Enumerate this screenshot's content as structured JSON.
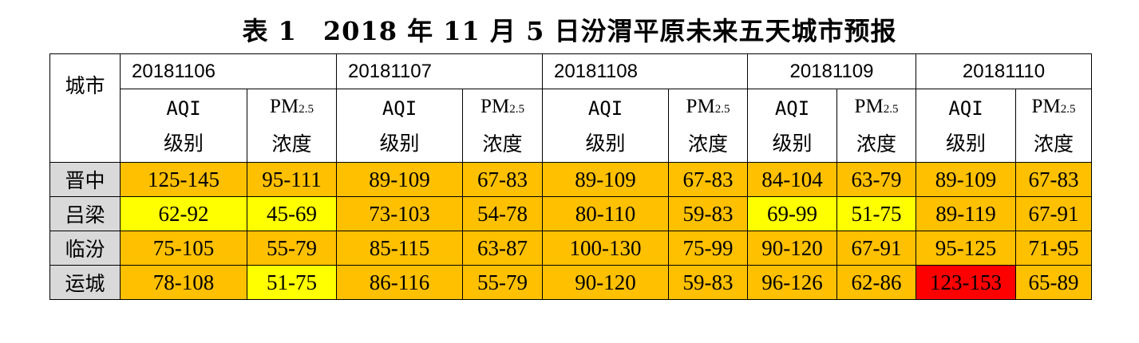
{
  "title": "表 1　2018 年 11 月 5 日汾渭平原未来五天城市预报",
  "city_header": "城市",
  "aqi_label_1": "AQI",
  "aqi_label_2": "级别",
  "pm_label_1": "PM",
  "pm_label_sub": "2.5",
  "pm_label_2": "浓度",
  "dates": [
    "20181106",
    "20181107",
    "20181108",
    "20181109",
    "20181110"
  ],
  "colors": {
    "orange": "#ffc000",
    "yellow": "#ffff00",
    "red": "#ff0000",
    "city_bg": "#d9d9d9"
  },
  "rows": [
    {
      "city": "晋中",
      "cells": [
        {
          "v": "125-145",
          "c": "orange"
        },
        {
          "v": "95-111",
          "c": "orange"
        },
        {
          "v": "89-109",
          "c": "orange"
        },
        {
          "v": "67-83",
          "c": "orange"
        },
        {
          "v": "89-109",
          "c": "orange"
        },
        {
          "v": "67-83",
          "c": "orange"
        },
        {
          "v": "84-104",
          "c": "orange"
        },
        {
          "v": "63-79",
          "c": "orange"
        },
        {
          "v": "89-109",
          "c": "orange"
        },
        {
          "v": "67-83",
          "c": "orange"
        }
      ]
    },
    {
      "city": "吕梁",
      "cells": [
        {
          "v": "62-92",
          "c": "yellow"
        },
        {
          "v": "45-69",
          "c": "yellow"
        },
        {
          "v": "73-103",
          "c": "orange"
        },
        {
          "v": "54-78",
          "c": "orange"
        },
        {
          "v": "80-110",
          "c": "orange"
        },
        {
          "v": "59-83",
          "c": "orange"
        },
        {
          "v": "69-99",
          "c": "yellow"
        },
        {
          "v": "51-75",
          "c": "yellow"
        },
        {
          "v": "89-119",
          "c": "orange"
        },
        {
          "v": "67-91",
          "c": "orange"
        }
      ]
    },
    {
      "city": "临汾",
      "cells": [
        {
          "v": "75-105",
          "c": "orange"
        },
        {
          "v": "55-79",
          "c": "orange"
        },
        {
          "v": "85-115",
          "c": "orange"
        },
        {
          "v": "63-87",
          "c": "orange"
        },
        {
          "v": "100-130",
          "c": "orange"
        },
        {
          "v": "75-99",
          "c": "orange"
        },
        {
          "v": "90-120",
          "c": "orange"
        },
        {
          "v": "67-91",
          "c": "orange"
        },
        {
          "v": "95-125",
          "c": "orange"
        },
        {
          "v": "71-95",
          "c": "orange"
        }
      ]
    },
    {
      "city": "运城",
      "cells": [
        {
          "v": "78-108",
          "c": "orange"
        },
        {
          "v": "51-75",
          "c": "yellow"
        },
        {
          "v": "86-116",
          "c": "orange"
        },
        {
          "v": "55-79",
          "c": "orange"
        },
        {
          "v": "90-120",
          "c": "orange"
        },
        {
          "v": "59-83",
          "c": "orange"
        },
        {
          "v": "96-126",
          "c": "orange"
        },
        {
          "v": "62-86",
          "c": "orange"
        },
        {
          "v": "123-153",
          "c": "red"
        },
        {
          "v": "65-89",
          "c": "orange"
        }
      ]
    }
  ]
}
